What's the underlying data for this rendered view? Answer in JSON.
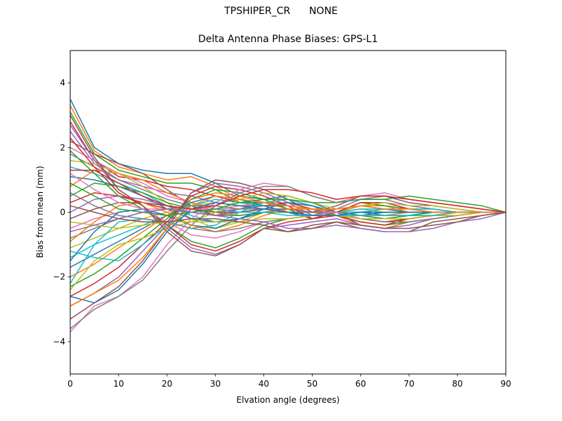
{
  "figure": {
    "suptitle": "TPSHIPER_CR      NONE"
  },
  "chart_data": {
    "type": "line",
    "title": "Delta Antenna Phase Biases: GPS-L1",
    "xlabel": "Elvation angle (degrees)",
    "ylabel": "Bias from mean (mm)",
    "xlim": [
      0,
      90
    ],
    "ylim": [
      -5,
      5
    ],
    "xticks": [
      0,
      10,
      20,
      30,
      40,
      50,
      60,
      70,
      80,
      90
    ],
    "yticks": [
      -4,
      -2,
      0,
      2,
      4
    ],
    "ytick_labels": [
      "−4",
      "−2",
      "0",
      "2",
      "4"
    ],
    "grid": false,
    "legend": "none",
    "colors": [
      "#1f77b4",
      "#ff7f0e",
      "#2ca02c",
      "#d62728",
      "#9467bd",
      "#8c564b",
      "#e377c2",
      "#7f7f7f",
      "#bcbd22",
      "#17becf"
    ],
    "x": [
      0,
      5,
      10,
      15,
      20,
      25,
      30,
      35,
      40,
      45,
      50,
      55,
      60,
      65,
      70,
      75,
      80,
      85,
      90
    ],
    "series": [
      {
        "values": [
          3.5,
          2.0,
          1.5,
          1.3,
          1.2,
          1.2,
          0.9,
          0.5,
          0.4,
          0.5,
          0.3,
          0.0,
          -0.4,
          -0.5,
          -0.3,
          -0.2,
          -0.1,
          0.0,
          0.0
        ]
      },
      {
        "values": [
          3.3,
          1.9,
          1.4,
          1.2,
          1.0,
          1.1,
          0.8,
          0.4,
          0.3,
          0.4,
          0.2,
          -0.1,
          -0.4,
          -0.5,
          -0.3,
          -0.2,
          -0.1,
          0.0,
          0.0
        ]
      },
      {
        "values": [
          3.1,
          1.8,
          1.3,
          1.1,
          0.9,
          0.9,
          0.7,
          0.3,
          0.3,
          0.3,
          0.2,
          -0.1,
          -0.3,
          -0.4,
          -0.3,
          -0.2,
          -0.1,
          0.0,
          0.0
        ]
      },
      {
        "values": [
          2.8,
          1.6,
          1.1,
          1.0,
          0.8,
          0.7,
          0.5,
          0.3,
          0.2,
          0.3,
          0.1,
          -0.1,
          -0.3,
          -0.4,
          -0.2,
          -0.1,
          -0.1,
          0.0,
          0.0
        ]
      },
      {
        "values": [
          2.5,
          1.5,
          1.0,
          0.8,
          0.6,
          0.5,
          0.3,
          0.2,
          0.2,
          0.2,
          0.1,
          -0.1,
          -0.2,
          -0.3,
          -0.2,
          -0.1,
          0.0,
          0.0,
          0.0
        ]
      },
      {
        "values": [
          2.2,
          1.8,
          1.5,
          1.2,
          0.7,
          0.2,
          -0.1,
          0.1,
          0.3,
          0.3,
          0.2,
          0.0,
          -0.2,
          -0.3,
          -0.2,
          -0.1,
          0.0,
          0.0,
          0.0
        ]
      },
      {
        "values": [
          2.0,
          1.6,
          1.2,
          0.9,
          0.5,
          0.3,
          0.1,
          0.2,
          0.3,
          0.3,
          0.2,
          0.0,
          -0.2,
          -0.2,
          -0.2,
          -0.1,
          0.0,
          0.0,
          0.0
        ]
      },
      {
        "values": [
          1.8,
          1.4,
          1.0,
          0.7,
          0.4,
          0.2,
          0.0,
          0.1,
          0.2,
          0.2,
          0.1,
          0.0,
          -0.1,
          -0.2,
          -0.1,
          -0.1,
          0.0,
          0.0,
          0.0
        ]
      },
      {
        "values": [
          1.6,
          1.5,
          1.2,
          0.8,
          0.3,
          -0.2,
          -0.5,
          -0.3,
          0.0,
          0.1,
          0.1,
          0.0,
          -0.1,
          -0.1,
          -0.1,
          0.0,
          0.0,
          0.0,
          0.0
        ]
      },
      {
        "values": [
          1.4,
          1.2,
          0.9,
          0.6,
          0.2,
          -0.1,
          -0.3,
          -0.2,
          0.0,
          0.1,
          0.1,
          0.0,
          -0.1,
          -0.1,
          -0.1,
          0.0,
          0.0,
          0.0,
          0.0
        ]
      },
      {
        "values": [
          1.1,
          1.0,
          0.8,
          0.5,
          0.1,
          -0.2,
          -0.3,
          -0.2,
          0.0,
          0.1,
          0.0,
          0.0,
          0.0,
          -0.1,
          -0.1,
          0.0,
          0.0,
          0.0,
          0.0
        ]
      },
      {
        "values": [
          0.8,
          1.3,
          1.2,
          1.0,
          0.6,
          0.3,
          0.0,
          -0.1,
          0.0,
          0.1,
          0.0,
          -0.1,
          -0.1,
          -0.1,
          0.0,
          0.0,
          0.0,
          0.0,
          0.0
        ]
      },
      {
        "values": [
          0.5,
          0.9,
          0.8,
          0.6,
          0.3,
          0.1,
          -0.1,
          -0.1,
          0.0,
          0.0,
          0.0,
          0.0,
          0.0,
          0.0,
          0.0,
          0.0,
          0.0,
          0.0,
          0.0
        ]
      },
      {
        "values": [
          0.3,
          0.6,
          0.5,
          0.3,
          0.1,
          0.0,
          -0.1,
          0.0,
          0.1,
          0.1,
          0.0,
          0.0,
          0.0,
          0.0,
          0.0,
          0.0,
          0.0,
          0.0,
          0.0
        ]
      },
      {
        "values": [
          0.0,
          0.4,
          0.5,
          0.4,
          0.2,
          0.0,
          -0.1,
          0.0,
          0.1,
          0.1,
          0.0,
          0.0,
          0.0,
          0.0,
          0.0,
          0.0,
          0.0,
          0.0,
          0.0
        ]
      },
      {
        "values": [
          -0.2,
          0.1,
          0.3,
          0.3,
          0.2,
          0.1,
          0.0,
          0.0,
          0.1,
          0.0,
          0.0,
          0.0,
          0.0,
          0.0,
          0.0,
          0.0,
          0.0,
          0.0,
          0.0
        ]
      },
      {
        "values": [
          -0.5,
          -0.2,
          0.0,
          0.1,
          0.1,
          0.1,
          0.1,
          0.1,
          0.1,
          0.0,
          0.0,
          0.0,
          0.0,
          0.0,
          0.0,
          0.0,
          0.0,
          0.0,
          0.0
        ]
      },
      {
        "values": [
          -0.8,
          -0.5,
          -0.2,
          0.0,
          0.1,
          0.2,
          0.2,
          0.1,
          0.1,
          0.0,
          0.0,
          0.0,
          0.0,
          0.0,
          0.0,
          0.0,
          0.0,
          0.0,
          0.0
        ]
      },
      {
        "values": [
          -1.1,
          -0.8,
          -0.5,
          -0.2,
          0.0,
          0.2,
          0.3,
          0.2,
          0.1,
          0.0,
          -0.1,
          0.0,
          0.1,
          0.0,
          0.0,
          0.0,
          0.0,
          0.0,
          0.0
        ]
      },
      {
        "values": [
          -1.4,
          -1.0,
          -0.7,
          -0.4,
          -0.1,
          0.2,
          0.4,
          0.3,
          0.2,
          0.0,
          -0.1,
          0.0,
          0.1,
          0.1,
          0.0,
          0.0,
          0.0,
          0.0,
          0.0
        ]
      },
      {
        "values": [
          -1.7,
          -1.3,
          -0.9,
          -0.5,
          -0.1,
          0.3,
          0.5,
          0.4,
          0.2,
          0.0,
          -0.2,
          0.0,
          0.2,
          0.1,
          0.0,
          0.0,
          0.0,
          0.0,
          0.0
        ]
      },
      {
        "values": [
          -2.0,
          -1.6,
          -1.1,
          -0.6,
          -0.1,
          0.4,
          0.6,
          0.5,
          0.3,
          0.1,
          -0.2,
          0.0,
          0.2,
          0.2,
          0.0,
          0.0,
          0.0,
          0.0,
          0.0
        ]
      },
      {
        "values": [
          -2.3,
          -1.9,
          -1.4,
          -0.8,
          -0.2,
          0.4,
          0.7,
          0.6,
          0.4,
          0.1,
          -0.2,
          0.0,
          0.3,
          0.2,
          0.1,
          0.0,
          0.0,
          0.0,
          0.0
        ]
      },
      {
        "values": [
          -2.6,
          -2.2,
          -1.7,
          -1.0,
          -0.3,
          0.5,
          0.8,
          0.7,
          0.5,
          0.2,
          -0.2,
          0.0,
          0.3,
          0.3,
          0.1,
          0.1,
          0.0,
          0.0,
          0.0
        ]
      },
      {
        "values": [
          -2.9,
          -2.5,
          -2.0,
          -1.2,
          -0.4,
          0.6,
          0.9,
          0.8,
          0.6,
          0.3,
          -0.1,
          0.1,
          0.4,
          0.4,
          0.2,
          0.1,
          0.0,
          0.0,
          0.0
        ]
      },
      {
        "values": [
          -3.3,
          -2.8,
          -2.3,
          -1.5,
          -0.5,
          0.6,
          1.0,
          0.9,
          0.7,
          0.4,
          0.0,
          0.2,
          0.5,
          0.5,
          0.3,
          0.2,
          0.1,
          0.0,
          0.0
        ]
      },
      {
        "values": [
          -3.7,
          -2.9,
          -2.6,
          -2.0,
          -1.0,
          -0.2,
          0.3,
          0.7,
          0.9,
          0.8,
          0.5,
          0.3,
          0.5,
          0.6,
          0.4,
          0.3,
          0.2,
          0.1,
          0.0
        ]
      },
      {
        "values": [
          -3.6,
          -3.0,
          -2.6,
          -2.1,
          -1.2,
          -0.4,
          0.2,
          0.6,
          0.8,
          0.8,
          0.5,
          0.3,
          0.4,
          0.5,
          0.4,
          0.3,
          0.2,
          0.1,
          0.0
        ]
      },
      {
        "values": [
          -2.4,
          -1.5,
          -1.0,
          -0.8,
          -0.5,
          -0.3,
          0.0,
          0.4,
          0.6,
          0.5,
          0.3,
          0.1,
          0.2,
          0.3,
          0.2,
          0.2,
          0.1,
          0.0,
          0.0
        ]
      },
      {
        "values": [
          -2.2,
          -1.0,
          -0.3,
          -0.2,
          -0.3,
          -0.5,
          -0.4,
          0.0,
          0.3,
          0.4,
          0.2,
          0.0,
          0.0,
          0.1,
          0.1,
          0.1,
          0.0,
          0.0,
          0.0
        ]
      },
      {
        "values": [
          -1.5,
          -0.6,
          0.0,
          0.1,
          -0.1,
          -0.4,
          -0.5,
          -0.2,
          0.1,
          0.3,
          0.2,
          0.0,
          -0.1,
          0.0,
          0.0,
          0.0,
          0.0,
          0.0,
          0.0
        ]
      },
      {
        "values": [
          -0.9,
          -0.3,
          0.2,
          0.3,
          0.0,
          -0.4,
          -0.6,
          -0.4,
          -0.1,
          0.1,
          0.1,
          0.0,
          -0.1,
          -0.1,
          0.0,
          0.0,
          0.0,
          0.0,
          0.0
        ]
      },
      {
        "values": [
          1.9,
          1.2,
          0.5,
          0.1,
          -0.4,
          -0.9,
          -1.1,
          -0.8,
          -0.4,
          -0.2,
          -0.1,
          0.0,
          -0.1,
          -0.2,
          -0.1,
          0.0,
          0.0,
          0.0,
          0.0
        ]
      },
      {
        "values": [
          2.3,
          1.4,
          0.6,
          0.2,
          -0.4,
          -1.0,
          -1.2,
          -0.9,
          -0.5,
          -0.3,
          -0.2,
          -0.1,
          -0.2,
          -0.3,
          -0.2,
          -0.1,
          0.0,
          0.0,
          0.0
        ]
      },
      {
        "values": [
          2.7,
          1.6,
          0.7,
          0.2,
          -0.5,
          -1.1,
          -1.3,
          -1.0,
          -0.5,
          -0.4,
          -0.3,
          -0.2,
          -0.4,
          -0.5,
          -0.4,
          -0.2,
          -0.1,
          0.0,
          0.0
        ]
      },
      {
        "values": [
          3.0,
          1.7,
          0.7,
          0.2,
          -0.6,
          -1.2,
          -1.35,
          -1.0,
          -0.5,
          -0.6,
          -0.4,
          -0.3,
          -0.5,
          -0.6,
          -0.6,
          -0.3,
          -0.2,
          -0.1,
          0.0
        ]
      },
      {
        "values": [
          1.2,
          0.7,
          0.3,
          0.1,
          -0.3,
          -0.7,
          -0.8,
          -0.6,
          -0.3,
          -0.2,
          -0.1,
          0.0,
          -0.2,
          -0.3,
          -0.3,
          -0.2,
          -0.1,
          0.0,
          0.0
        ]
      },
      {
        "values": [
          0.6,
          0.2,
          -0.1,
          -0.2,
          -0.3,
          -0.5,
          -0.6,
          -0.5,
          -0.3,
          -0.2,
          -0.1,
          -0.1,
          -0.2,
          -0.3,
          -0.3,
          -0.2,
          -0.1,
          0.0,
          0.0
        ]
      },
      {
        "values": [
          -0.3,
          -0.4,
          -0.5,
          -0.4,
          -0.3,
          -0.3,
          -0.3,
          -0.3,
          -0.2,
          -0.2,
          -0.1,
          -0.1,
          -0.2,
          -0.2,
          -0.2,
          -0.1,
          -0.1,
          0.0,
          0.0
        ]
      },
      {
        "values": [
          -1.2,
          -1.4,
          -1.5,
          -1.0,
          -0.4,
          0.0,
          0.1,
          0.0,
          0.0,
          -0.1,
          -0.1,
          -0.1,
          -0.1,
          -0.1,
          -0.1,
          -0.1,
          0.0,
          0.0,
          0.0
        ]
      },
      {
        "values": [
          -2.6,
          -2.8,
          -2.4,
          -1.6,
          -0.6,
          0.1,
          0.3,
          0.2,
          0.1,
          0.0,
          -0.1,
          -0.1,
          0.0,
          0.0,
          0.0,
          0.0,
          0.0,
          0.0,
          0.0
        ]
      },
      {
        "values": [
          -2.9,
          -2.5,
          -2.1,
          -1.4,
          -0.5,
          0.2,
          0.5,
          0.4,
          0.3,
          0.2,
          0.1,
          0.1,
          0.2,
          0.1,
          0.1,
          0.0,
          0.0,
          0.0,
          0.0
        ]
      },
      {
        "values": [
          0.9,
          0.5,
          0.1,
          0.0,
          -0.1,
          0.0,
          0.1,
          0.3,
          0.4,
          0.4,
          0.3,
          0.3,
          0.4,
          0.4,
          0.5,
          0.4,
          0.3,
          0.2,
          0.0
        ]
      },
      {
        "values": [
          1.3,
          1.3,
          0.9,
          0.5,
          0.2,
          0.1,
          0.2,
          0.5,
          0.7,
          0.7,
          0.6,
          0.4,
          0.5,
          0.5,
          0.4,
          0.3,
          0.2,
          0.1,
          0.0
        ]
      },
      {
        "values": [
          -0.6,
          -0.4,
          -0.2,
          0.0,
          0.1,
          0.0,
          -0.1,
          -0.2,
          -0.3,
          -0.5,
          -0.5,
          -0.4,
          -0.5,
          -0.6,
          -0.6,
          -0.5,
          -0.3,
          -0.2,
          0.0
        ]
      },
      {
        "values": [
          0.2,
          0.0,
          -0.2,
          -0.3,
          -0.3,
          -0.2,
          -0.2,
          -0.3,
          -0.4,
          -0.6,
          -0.5,
          -0.3,
          -0.4,
          -0.5,
          -0.5,
          -0.4,
          -0.3,
          -0.1,
          0.0
        ]
      }
    ]
  }
}
